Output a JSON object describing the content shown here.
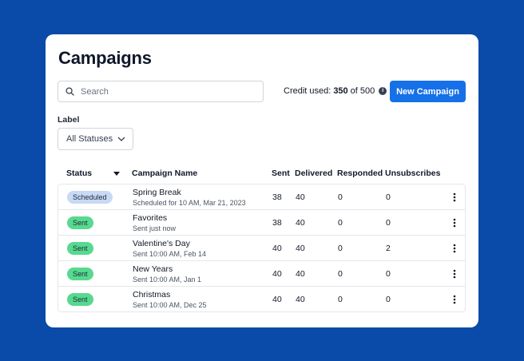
{
  "page": {
    "title": "Campaigns",
    "search_placeholder": "Search",
    "credit": {
      "prefix": "Credit used:",
      "used": "350",
      "suffix": "of 500"
    },
    "new_button": "New Campaign",
    "label": "Label",
    "status_filter": "All Statuses"
  },
  "colors": {
    "background": "#0a4aa8",
    "accent": "#1670e8",
    "sent_badge": "#57d98f",
    "scheduled_badge": "#c8d9f5"
  },
  "table": {
    "headers": {
      "status": "Status",
      "name": "Campaign Name",
      "sent": "Sent",
      "delivered": "Delivered",
      "responded": "Responded",
      "unsubscribes": "Unsubscribes"
    },
    "rows": [
      {
        "status": "Scheduled",
        "name": "Spring Break",
        "sub": "Scheduled for 10 AM, Mar 21, 2023",
        "sent": "38",
        "delivered": "40",
        "responded": "0",
        "unsubscribes": "0"
      },
      {
        "status": "Sent",
        "name": "Favorites",
        "sub": "Sent just now",
        "sent": "38",
        "delivered": "40",
        "responded": "0",
        "unsubscribes": "0"
      },
      {
        "status": "Sent",
        "name": "Valentine's Day",
        "sub": "Sent 10:00 AM, Feb 14",
        "sent": "40",
        "delivered": "40",
        "responded": "0",
        "unsubscribes": "2"
      },
      {
        "status": "Sent",
        "name": "New Years",
        "sub": "Sent 10:00 AM, Jan 1",
        "sent": "40",
        "delivered": "40",
        "responded": "0",
        "unsubscribes": "0"
      },
      {
        "status": "Sent",
        "name": "Christmas",
        "sub": "Sent 10:00 AM, Dec 25",
        "sent": "40",
        "delivered": "40",
        "responded": "0",
        "unsubscribes": "0"
      }
    ]
  }
}
